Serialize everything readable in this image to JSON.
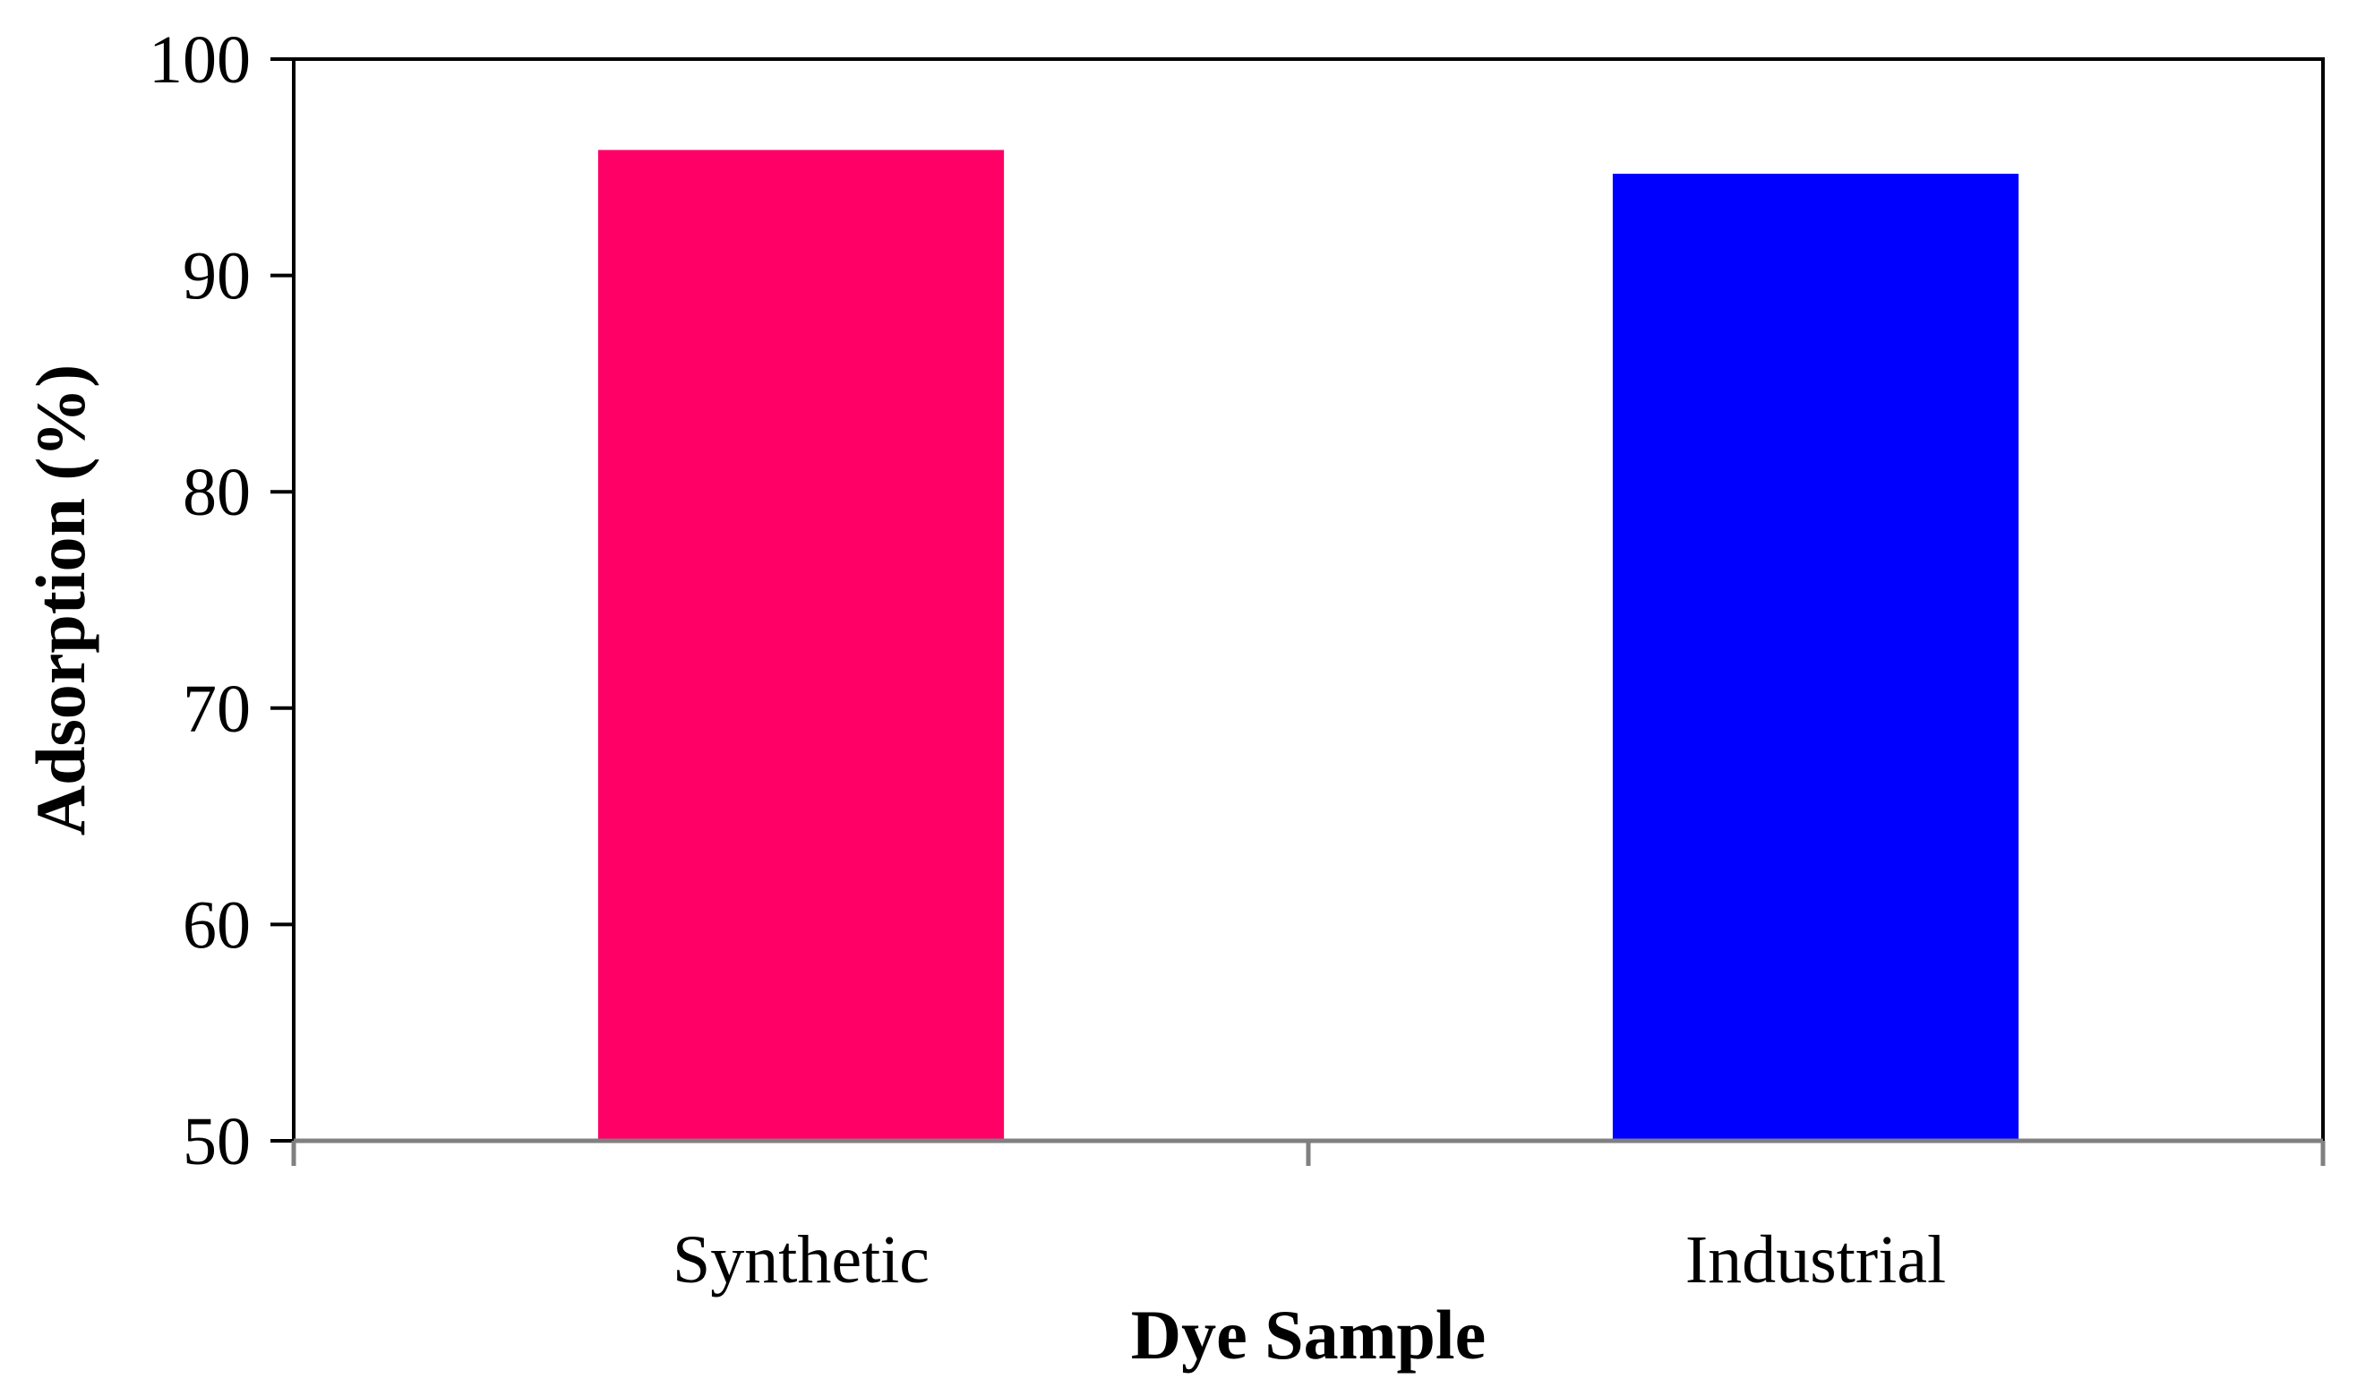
{
  "chart_data": {
    "type": "bar",
    "title": "",
    "xlabel": "Dye Sample",
    "ylabel": "Adsorption (%)",
    "categories": [
      "Synthetic",
      "Industrial"
    ],
    "values": [
      95.8,
      94.7
    ],
    "colors": [
      "#ff0066",
      "#0000ff"
    ],
    "ylim": [
      50,
      100
    ],
    "yticks": [
      50,
      60,
      70,
      80,
      90,
      100
    ],
    "grid": false,
    "legend": "none"
  }
}
